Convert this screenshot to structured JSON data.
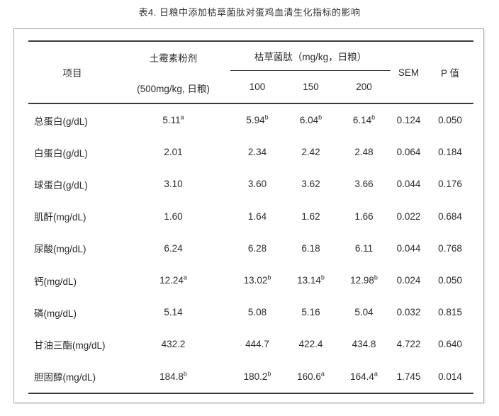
{
  "title": "表4. 日粮中添加枯草菌肽对蛋鸡血清生化指标的影响",
  "colors": {
    "rule": "#3c3c3c",
    "text": "#2b2b2b",
    "panel_border": "#ababab"
  },
  "table": {
    "header": {
      "item": "项目",
      "antibiotic_line1": "土霉素粉剂",
      "antibiotic_line2": "(500mg/kg, 日粮)",
      "treatment_span": "枯草菌肽（mg/kg，日粮）",
      "doses": [
        "100",
        "150",
        "200"
      ],
      "sem": "SEM",
      "p_value": "P 值"
    },
    "rows": [
      {
        "item": "总蛋白(g/dL)",
        "cells": [
          {
            "v": "5.11",
            "s": "a"
          },
          {
            "v": "5.94",
            "s": "b"
          },
          {
            "v": "6.04",
            "s": "b"
          },
          {
            "v": "6.14",
            "s": "b"
          },
          {
            "v": "0.124"
          },
          {
            "v": "0.050"
          }
        ]
      },
      {
        "item": "白蛋白(g/dL)",
        "cells": [
          {
            "v": "2.01"
          },
          {
            "v": "2.34"
          },
          {
            "v": "2.42"
          },
          {
            "v": "2.48"
          },
          {
            "v": "0.064"
          },
          {
            "v": "0.184"
          }
        ]
      },
      {
        "item": "球蛋白(g/dL)",
        "cells": [
          {
            "v": "3.10"
          },
          {
            "v": "3.60"
          },
          {
            "v": "3.62"
          },
          {
            "v": "3.66"
          },
          {
            "v": "0.044"
          },
          {
            "v": "0.176"
          }
        ]
      },
      {
        "item": "肌酐(mg/dL)",
        "cells": [
          {
            "v": "1.60"
          },
          {
            "v": "1.64"
          },
          {
            "v": "1.62"
          },
          {
            "v": "1.66"
          },
          {
            "v": "0.022"
          },
          {
            "v": "0.684"
          }
        ]
      },
      {
        "item": "尿酸(mg/dL)",
        "cells": [
          {
            "v": "6.24"
          },
          {
            "v": "6.28"
          },
          {
            "v": "6.18"
          },
          {
            "v": "6.11"
          },
          {
            "v": "0.044"
          },
          {
            "v": "0.768"
          }
        ]
      },
      {
        "item": "钙(mg/dL)",
        "cells": [
          {
            "v": "12.24",
            "s": "a"
          },
          {
            "v": "13.02",
            "s": "b"
          },
          {
            "v": "13.14",
            "s": "b"
          },
          {
            "v": "12.98",
            "s": "b"
          },
          {
            "v": "0.024"
          },
          {
            "v": "0.050"
          }
        ]
      },
      {
        "item": "磷(mg/dL)",
        "cells": [
          {
            "v": "5.14"
          },
          {
            "v": "5.08"
          },
          {
            "v": "5.16"
          },
          {
            "v": "5.04"
          },
          {
            "v": "0.032"
          },
          {
            "v": "0.815"
          }
        ]
      },
      {
        "item": "甘油三酯(mg/dL)",
        "cells": [
          {
            "v": "432.2"
          },
          {
            "v": "444.7"
          },
          {
            "v": "422.4"
          },
          {
            "v": "434.8"
          },
          {
            "v": "4.722"
          },
          {
            "v": "0.640"
          }
        ]
      },
      {
        "item": "胆固醇(mg/dL)",
        "cells": [
          {
            "v": "184.8",
            "s": "b"
          },
          {
            "v": "180.2",
            "s": "b"
          },
          {
            "v": "160.6",
            "s": "a"
          },
          {
            "v": "164.4",
            "s": "a"
          },
          {
            "v": "1.745"
          },
          {
            "v": "0.014"
          }
        ]
      }
    ]
  }
}
